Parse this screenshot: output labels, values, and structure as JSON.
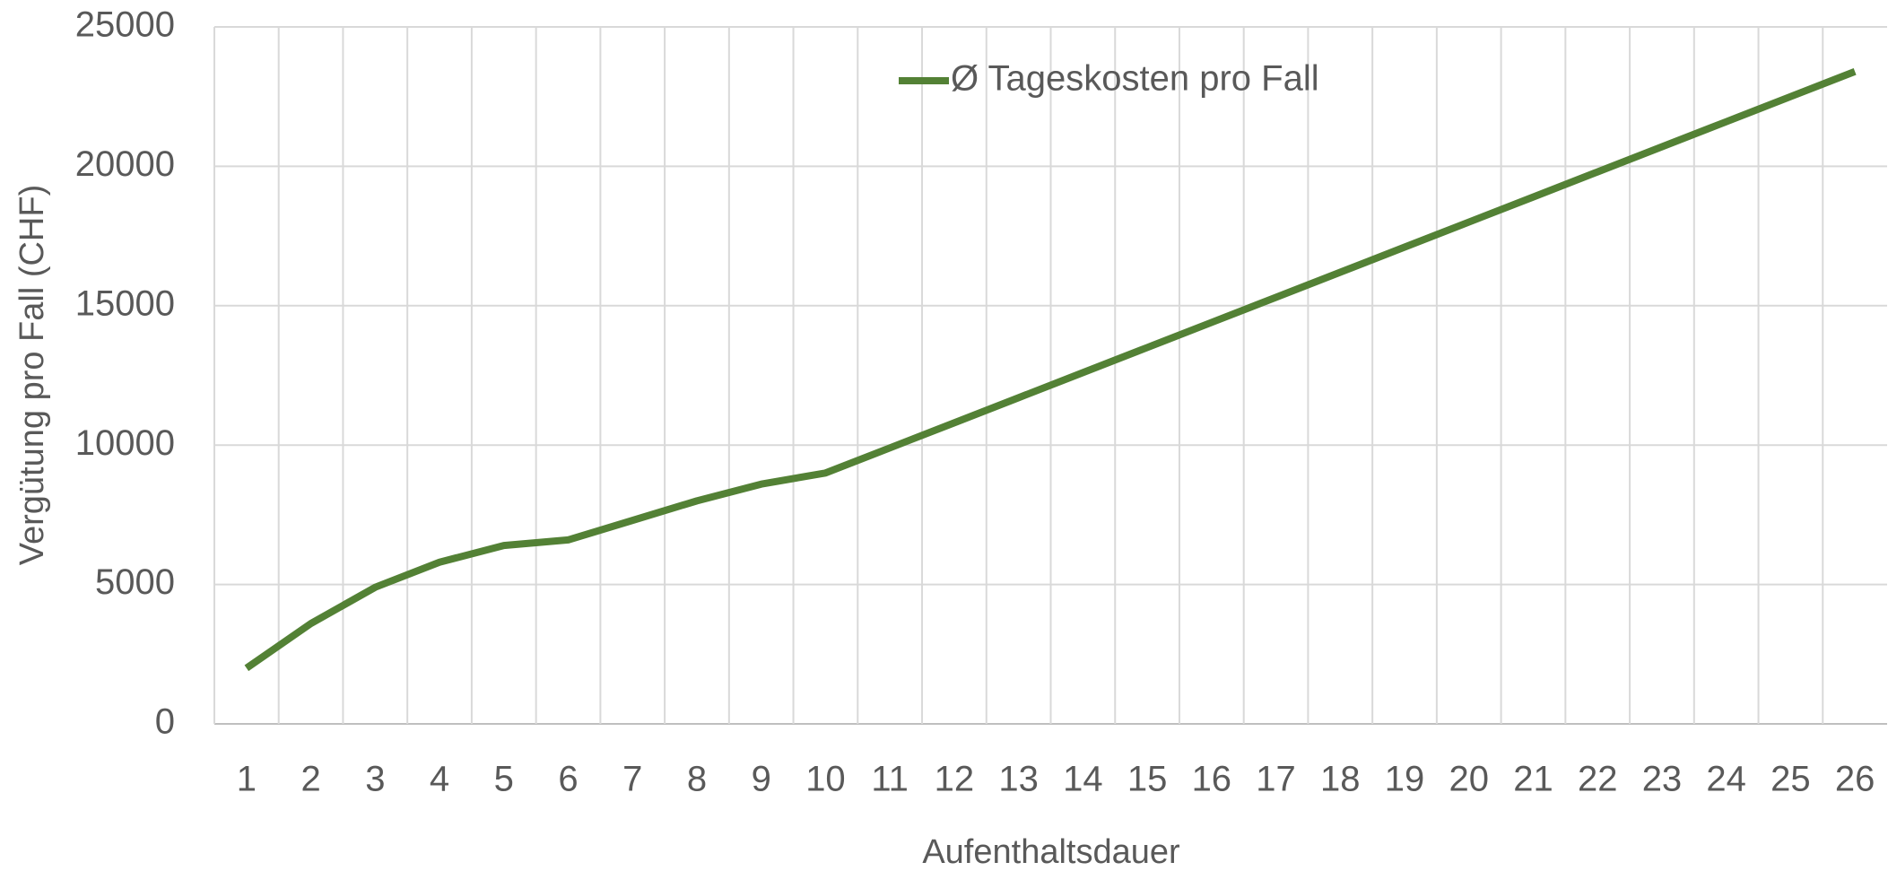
{
  "chart_data": {
    "type": "line",
    "x_label": "Aufenthaltsdauer",
    "y_label": "Vergütung pro Fall (CHF)",
    "categories": [
      "1",
      "2",
      "3",
      "4",
      "5",
      "6",
      "7",
      "8",
      "9",
      "10",
      "11",
      "12",
      "13",
      "14",
      "15",
      "16",
      "17",
      "18",
      "19",
      "20",
      "21",
      "22",
      "23",
      "24",
      "25",
      "26"
    ],
    "series": [
      {
        "name": "Ø Tageskosten pro Fall",
        "color": "#538135",
        "values": [
          2000,
          3600,
          4900,
          5800,
          6400,
          6600,
          7300,
          8000,
          8600,
          9000,
          9900,
          10800,
          11700,
          12600,
          13500,
          14400,
          15300,
          16200,
          17100,
          18000,
          18900,
          19800,
          20700,
          21600,
          22500,
          23400
        ]
      }
    ],
    "ylim": [
      0,
      25000
    ],
    "yticks": [
      0,
      5000,
      10000,
      15000,
      20000,
      25000
    ],
    "grid": true,
    "legend": "top"
  }
}
